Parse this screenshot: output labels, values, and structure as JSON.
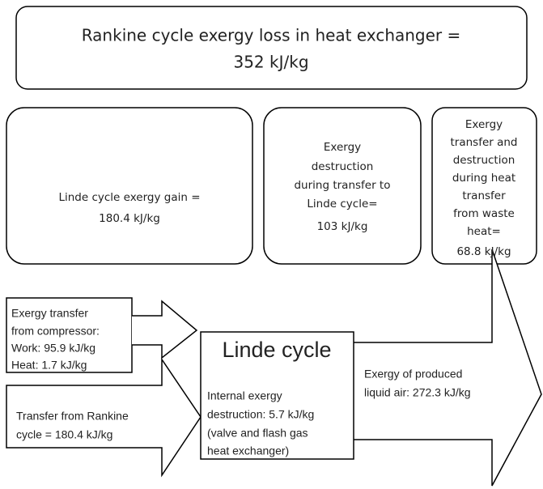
{
  "top_box": {
    "lines": [
      "Rankine cycle exergy loss in heat exchanger =",
      "352 kJ/kg"
    ]
  },
  "boxes": [
    {
      "lines": [
        "Linde cycle exergy gain =",
        "180.4 kJ/kg"
      ]
    },
    {
      "lines": [
        "Exergy",
        "destruction",
        "during transfer to",
        "Linde cycle=",
        "103 kJ/kg"
      ]
    },
    {
      "lines": [
        "Exergy",
        "transfer and",
        "destruction",
        "during heat",
        "transfer",
        "from waste",
        "heat=",
        "68.8 kJ/kg"
      ]
    }
  ],
  "compressor_box": {
    "lines": [
      "Exergy transfer",
      "from compressor:",
      "Work: 95.9 kJ/kg",
      "Heat: 1.7 kJ/kg"
    ]
  },
  "rankine_arrow": {
    "lines": [
      "Transfer from Rankine",
      "cycle = 180.4 kJ/kg"
    ]
  },
  "linde_box": {
    "title": "Linde cycle",
    "lines": [
      "Internal exergy",
      "destruction: 5.7 kJ/kg",
      "(valve and flash gas",
      "heat exchanger)"
    ]
  },
  "output_arrow": {
    "lines": [
      "Exergy of produced",
      "liquid air: 272.3 kJ/kg"
    ]
  }
}
